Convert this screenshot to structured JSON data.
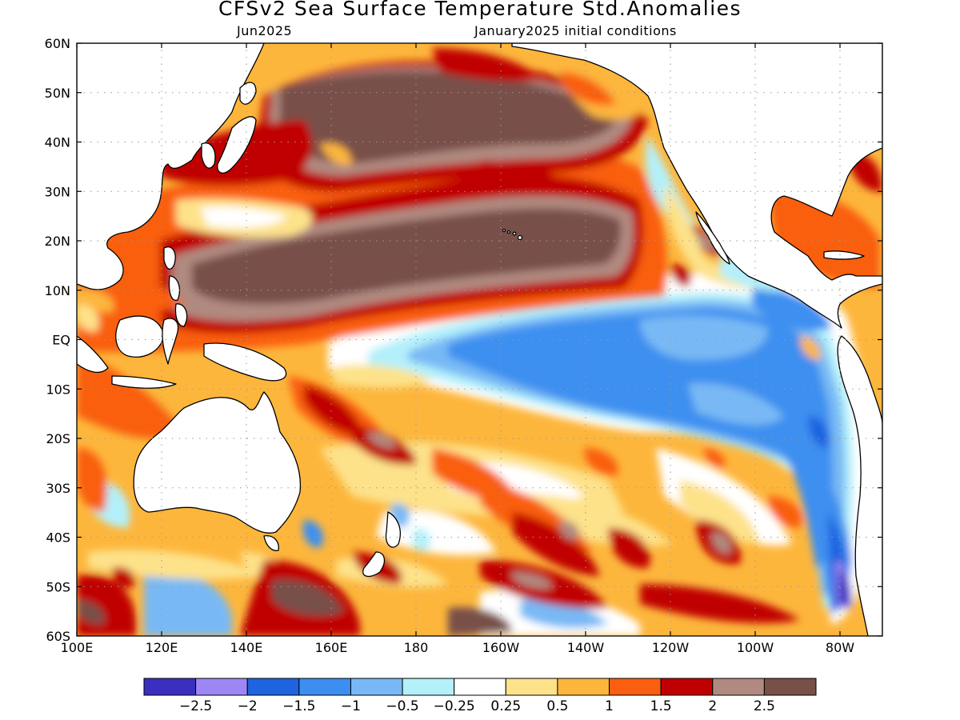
{
  "header": {
    "title": "CFSv2 Sea Surface Temperature Std.Anomalies",
    "valid_label": "Jun2025",
    "init_label": "January2025 initial conditions"
  },
  "map": {
    "projection": "cylindrical-equidistant",
    "lon_range": [
      100,
      290
    ],
    "lat_range": [
      -60,
      60
    ],
    "grid": true,
    "lat_ticks": [
      "60N",
      "50N",
      "40N",
      "30N",
      "20N",
      "10N",
      "EQ",
      "10S",
      "20S",
      "30S",
      "40S",
      "50S",
      "60S"
    ],
    "lon_ticks": [
      "100E",
      "120E",
      "140E",
      "160E",
      "180",
      "160W",
      "140W",
      "120W",
      "100W",
      "80W"
    ],
    "land_color": "#ffffff",
    "coastline_color": "#000000"
  },
  "colorbar": {
    "colors": [
      "#3b2fbf",
      "#9e87f5",
      "#1e64e0",
      "#3c8ff0",
      "#78b9f5",
      "#b4f0fa",
      "#ffffff",
      "#fde28a",
      "#fdb63c",
      "#f95f0f",
      "#c00000",
      "#b08a80",
      "#785048"
    ],
    "labels": [
      "-2.5",
      "-2",
      "-1.5",
      "-1",
      "-0.5",
      "-0.25",
      "0.25",
      "0.5",
      "1",
      "1.5",
      "2",
      "2.5"
    ]
  }
}
